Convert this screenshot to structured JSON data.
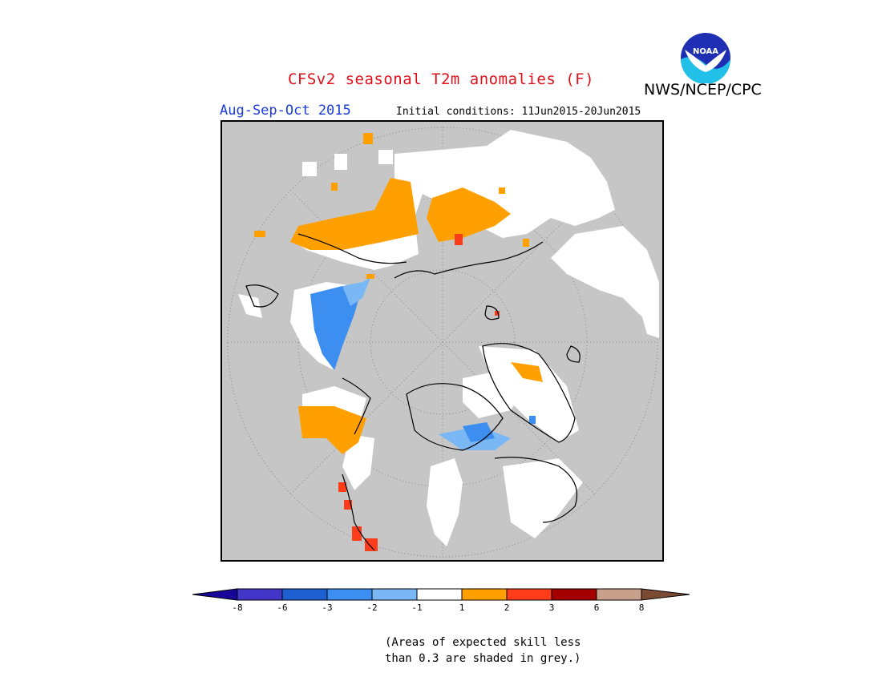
{
  "header": {
    "title": "CFSv2 seasonal T2m anomalies (F)",
    "organization": "NWS/NCEP/CPC",
    "logo_text": "NOAA",
    "season": "Aug-Sep-Oct 2015",
    "initial_conditions": "Initial conditions: 11Jun2015-20Jun2015"
  },
  "legend": {
    "tick_labels": [
      "-8",
      "-6",
      "-3",
      "-2",
      "-1",
      "1",
      "2",
      "3",
      "6",
      "8"
    ],
    "colors": [
      "#18069a",
      "#4236c8",
      "#1e5fd2",
      "#3c8ef0",
      "#7ab8f5",
      "#ffffff",
      "#ffa000",
      "#ff3c1a",
      "#a50000",
      "#c8a08c",
      "#7a4a32"
    ]
  },
  "note": {
    "line1": "(Areas of expected skill less",
    "line2": "than 0.3 are shaded in grey.)"
  }
}
